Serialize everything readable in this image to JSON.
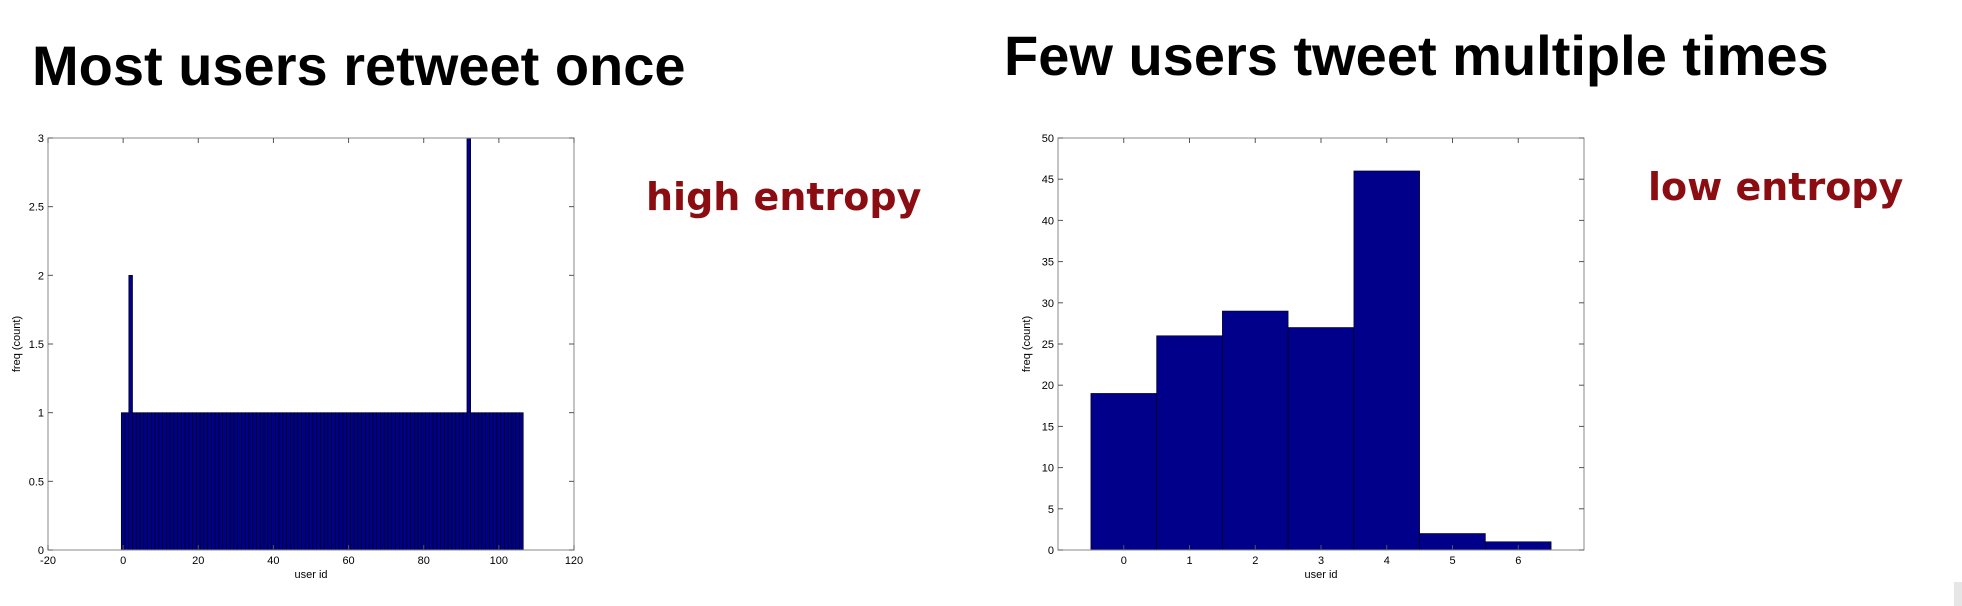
{
  "slide": {
    "left_title": "Most users retweet once",
    "right_title": "Few users tweet multiple times",
    "left_annotation": "high entropy",
    "right_annotation": "low entropy",
    "annotation_color": "#8b0d12"
  },
  "chart_data": [
    {
      "type": "bar",
      "xlabel": "user id",
      "ylabel": "freq (count)",
      "xlim": [
        -20,
        120
      ],
      "ylim": [
        0,
        3
      ],
      "xticks": [
        -20,
        0,
        20,
        40,
        60,
        80,
        100,
        120
      ],
      "yticks": [
        0,
        0.5,
        1,
        1.5,
        2,
        2.5,
        3
      ],
      "bar_width": 1,
      "bar_color": "#00008b",
      "x": [
        0,
        1,
        2,
        3,
        4,
        5,
        6,
        7,
        8,
        9,
        10,
        11,
        12,
        13,
        14,
        15,
        16,
        17,
        18,
        19,
        20,
        21,
        22,
        23,
        24,
        25,
        26,
        27,
        28,
        29,
        30,
        31,
        32,
        33,
        34,
        35,
        36,
        37,
        38,
        39,
        40,
        41,
        42,
        43,
        44,
        45,
        46,
        47,
        48,
        49,
        50,
        51,
        52,
        53,
        54,
        55,
        56,
        57,
        58,
        59,
        60,
        61,
        62,
        63,
        64,
        65,
        66,
        67,
        68,
        69,
        70,
        71,
        72,
        73,
        74,
        75,
        76,
        77,
        78,
        79,
        80,
        81,
        82,
        83,
        84,
        85,
        86,
        87,
        88,
        89,
        90,
        91,
        92,
        93,
        94,
        95,
        96,
        97,
        98,
        99,
        100,
        101,
        102,
        103,
        104,
        105,
        106
      ],
      "values": [
        1,
        1,
        2,
        1,
        1,
        1,
        1,
        1,
        1,
        1,
        1,
        1,
        1,
        1,
        1,
        1,
        1,
        1,
        1,
        1,
        1,
        1,
        1,
        1,
        1,
        1,
        1,
        1,
        1,
        1,
        1,
        1,
        1,
        1,
        1,
        1,
        1,
        1,
        1,
        1,
        1,
        1,
        1,
        1,
        1,
        1,
        1,
        1,
        1,
        1,
        1,
        1,
        1,
        1,
        1,
        1,
        1,
        1,
        1,
        1,
        1,
        1,
        1,
        1,
        1,
        1,
        1,
        1,
        1,
        1,
        1,
        1,
        1,
        1,
        1,
        1,
        1,
        1,
        1,
        1,
        1,
        1,
        1,
        1,
        1,
        1,
        1,
        1,
        1,
        1,
        1,
        1,
        3,
        1,
        1,
        1,
        1,
        1,
        1,
        1,
        1,
        1,
        1,
        1,
        1,
        1,
        1
      ]
    },
    {
      "type": "bar",
      "xlabel": "user id",
      "ylabel": "freq (count)",
      "xlim": [
        -1,
        7
      ],
      "ylim": [
        0,
        50
      ],
      "xticks": [
        0,
        1,
        2,
        3,
        4,
        5,
        6
      ],
      "yticks": [
        0,
        5,
        10,
        15,
        20,
        25,
        30,
        35,
        40,
        45,
        50
      ],
      "bar_width": 1,
      "bar_color": "#00008b",
      "x": [
        0,
        1,
        2,
        3,
        4,
        5,
        6
      ],
      "values": [
        19,
        26,
        29,
        27,
        46,
        2,
        1
      ]
    }
  ]
}
